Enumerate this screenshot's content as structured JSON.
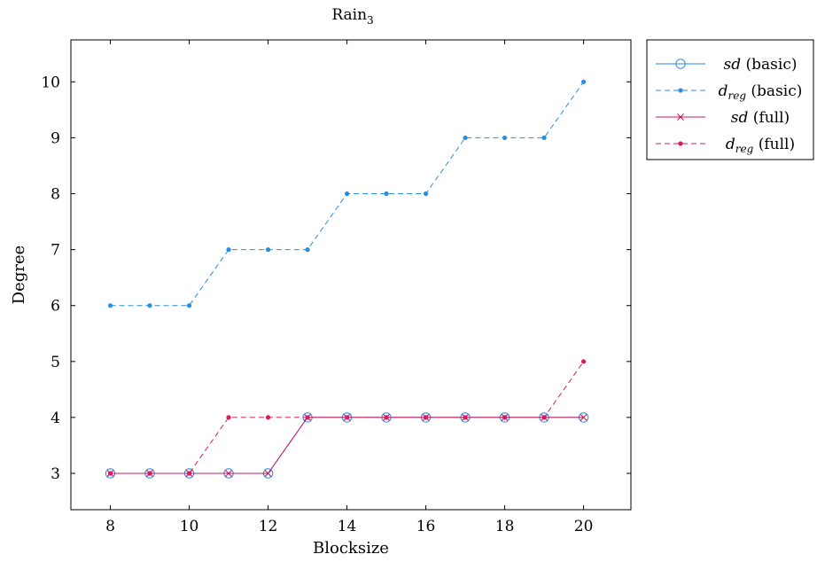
{
  "chart_data": {
    "type": "line",
    "title": {
      "base": "Rain",
      "sub": "3"
    },
    "xlabel": "Blocksize",
    "ylabel": "Degree",
    "xlim": [
      7,
      21.2
    ],
    "ylim": [
      2.35,
      10.75
    ],
    "xticks": [
      "8",
      "10",
      "12",
      "14",
      "16",
      "18",
      "20"
    ],
    "yticks": [
      "3",
      "4",
      "5",
      "6",
      "7",
      "8",
      "9",
      "10"
    ],
    "grid": false,
    "legend_position": "outside-top-right",
    "x": [
      8,
      9,
      10,
      11,
      12,
      13,
      14,
      15,
      16,
      17,
      18,
      19,
      20
    ],
    "series": [
      {
        "name_math": "sd",
        "name_sub": "",
        "name_rest": " (basic)",
        "color": "#2a8de0",
        "dash": "solid",
        "marker": "circle",
        "values": [
          3,
          3,
          3,
          3,
          3,
          4,
          4,
          4,
          4,
          4,
          4,
          4,
          4
        ]
      },
      {
        "name_math": "d",
        "name_sub": "reg",
        "name_rest": " (basic)",
        "color": "#2a8de0",
        "dash": "dashed",
        "marker": "dot",
        "values": [
          6,
          6,
          6,
          7,
          7,
          7,
          8,
          8,
          8,
          9,
          9,
          9,
          10
        ]
      },
      {
        "name_math": "sd",
        "name_sub": "",
        "name_rest": " (full)",
        "color": "#c8175d",
        "dash": "solid",
        "marker": "cross",
        "values": [
          3,
          3,
          3,
          3,
          3,
          4,
          4,
          4,
          4,
          4,
          4,
          4,
          4
        ]
      },
      {
        "name_math": "d",
        "name_sub": "reg",
        "name_rest": " (full)",
        "color": "#d81b60",
        "dash": "dashed",
        "marker": "dot",
        "values": [
          3,
          3,
          3,
          4,
          4,
          4,
          4,
          4,
          4,
          4,
          4,
          4,
          5
        ]
      }
    ]
  }
}
